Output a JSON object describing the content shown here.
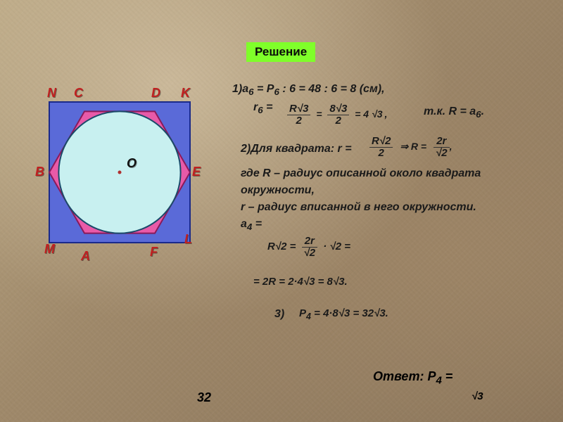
{
  "badge": {
    "text": "Решение",
    "bg": "#7fff2a",
    "color": "#0a0a0a"
  },
  "diagram": {
    "square": {
      "fill": "#5a6ad8",
      "stroke": "#1a2a8a"
    },
    "hexagon": {
      "fill": "#e85aa8",
      "stroke": "#8a1a5a"
    },
    "circle": {
      "fill": "#c8f0f0",
      "stroke": "#1a4a6a"
    },
    "center_dot": "#b03030",
    "label_color": "#c02020",
    "o_label_color": "#101010",
    "labels": {
      "N": "N",
      "C": "C",
      "D": "D",
      "K": "K",
      "B": "B",
      "O": "O",
      "E": "E",
      "M": "M",
      "A": "A",
      "F": "F",
      "L": "L"
    }
  },
  "text": {
    "line1a": "1)a",
    "line1b": " = P",
    "line1c": " : 6 = 48 : 6 = 8 (см),",
    "sub6": "6",
    "line2": "r",
    "eq": " =",
    "rnote": "т.к. R = a",
    "r6eq": "= 4",
    "r6mid": "= ",
    "line3a": "2)Для квадрата:  r =",
    "line3R": "R",
    "line3arrow": "⇒ R =",
    "desc1": "где R – радиус описанной около квадрата",
    "desc2": "окружности,",
    "desc3": "r – радиус вписанной в него окружности.",
    "desc4": "a",
    "sub4": "4",
    "f1": "R",
    "f2": "2 =",
    "chain_eq": "·",
    "chain2": "2 =",
    "line_bot": "= 2R = 2·4",
    "line_bot2": "3 = 8",
    "line_bot3": "3.",
    "three": "3)",
    "p4": "P",
    "p4eq": " = 4·8",
    "p4b": "3 = 32",
    "p4c": "3.",
    "answer_label": "Ответ: Р",
    "answer_eq": " =",
    "answer32": "32",
    "sqrt": "√",
    "two": "2",
    "three_n": "3",
    "r_txt": "r",
    "twor": "2r",
    "eight": "8"
  },
  "colors": {
    "text_main": "#161412",
    "accent_red": "#9a2a2a"
  }
}
